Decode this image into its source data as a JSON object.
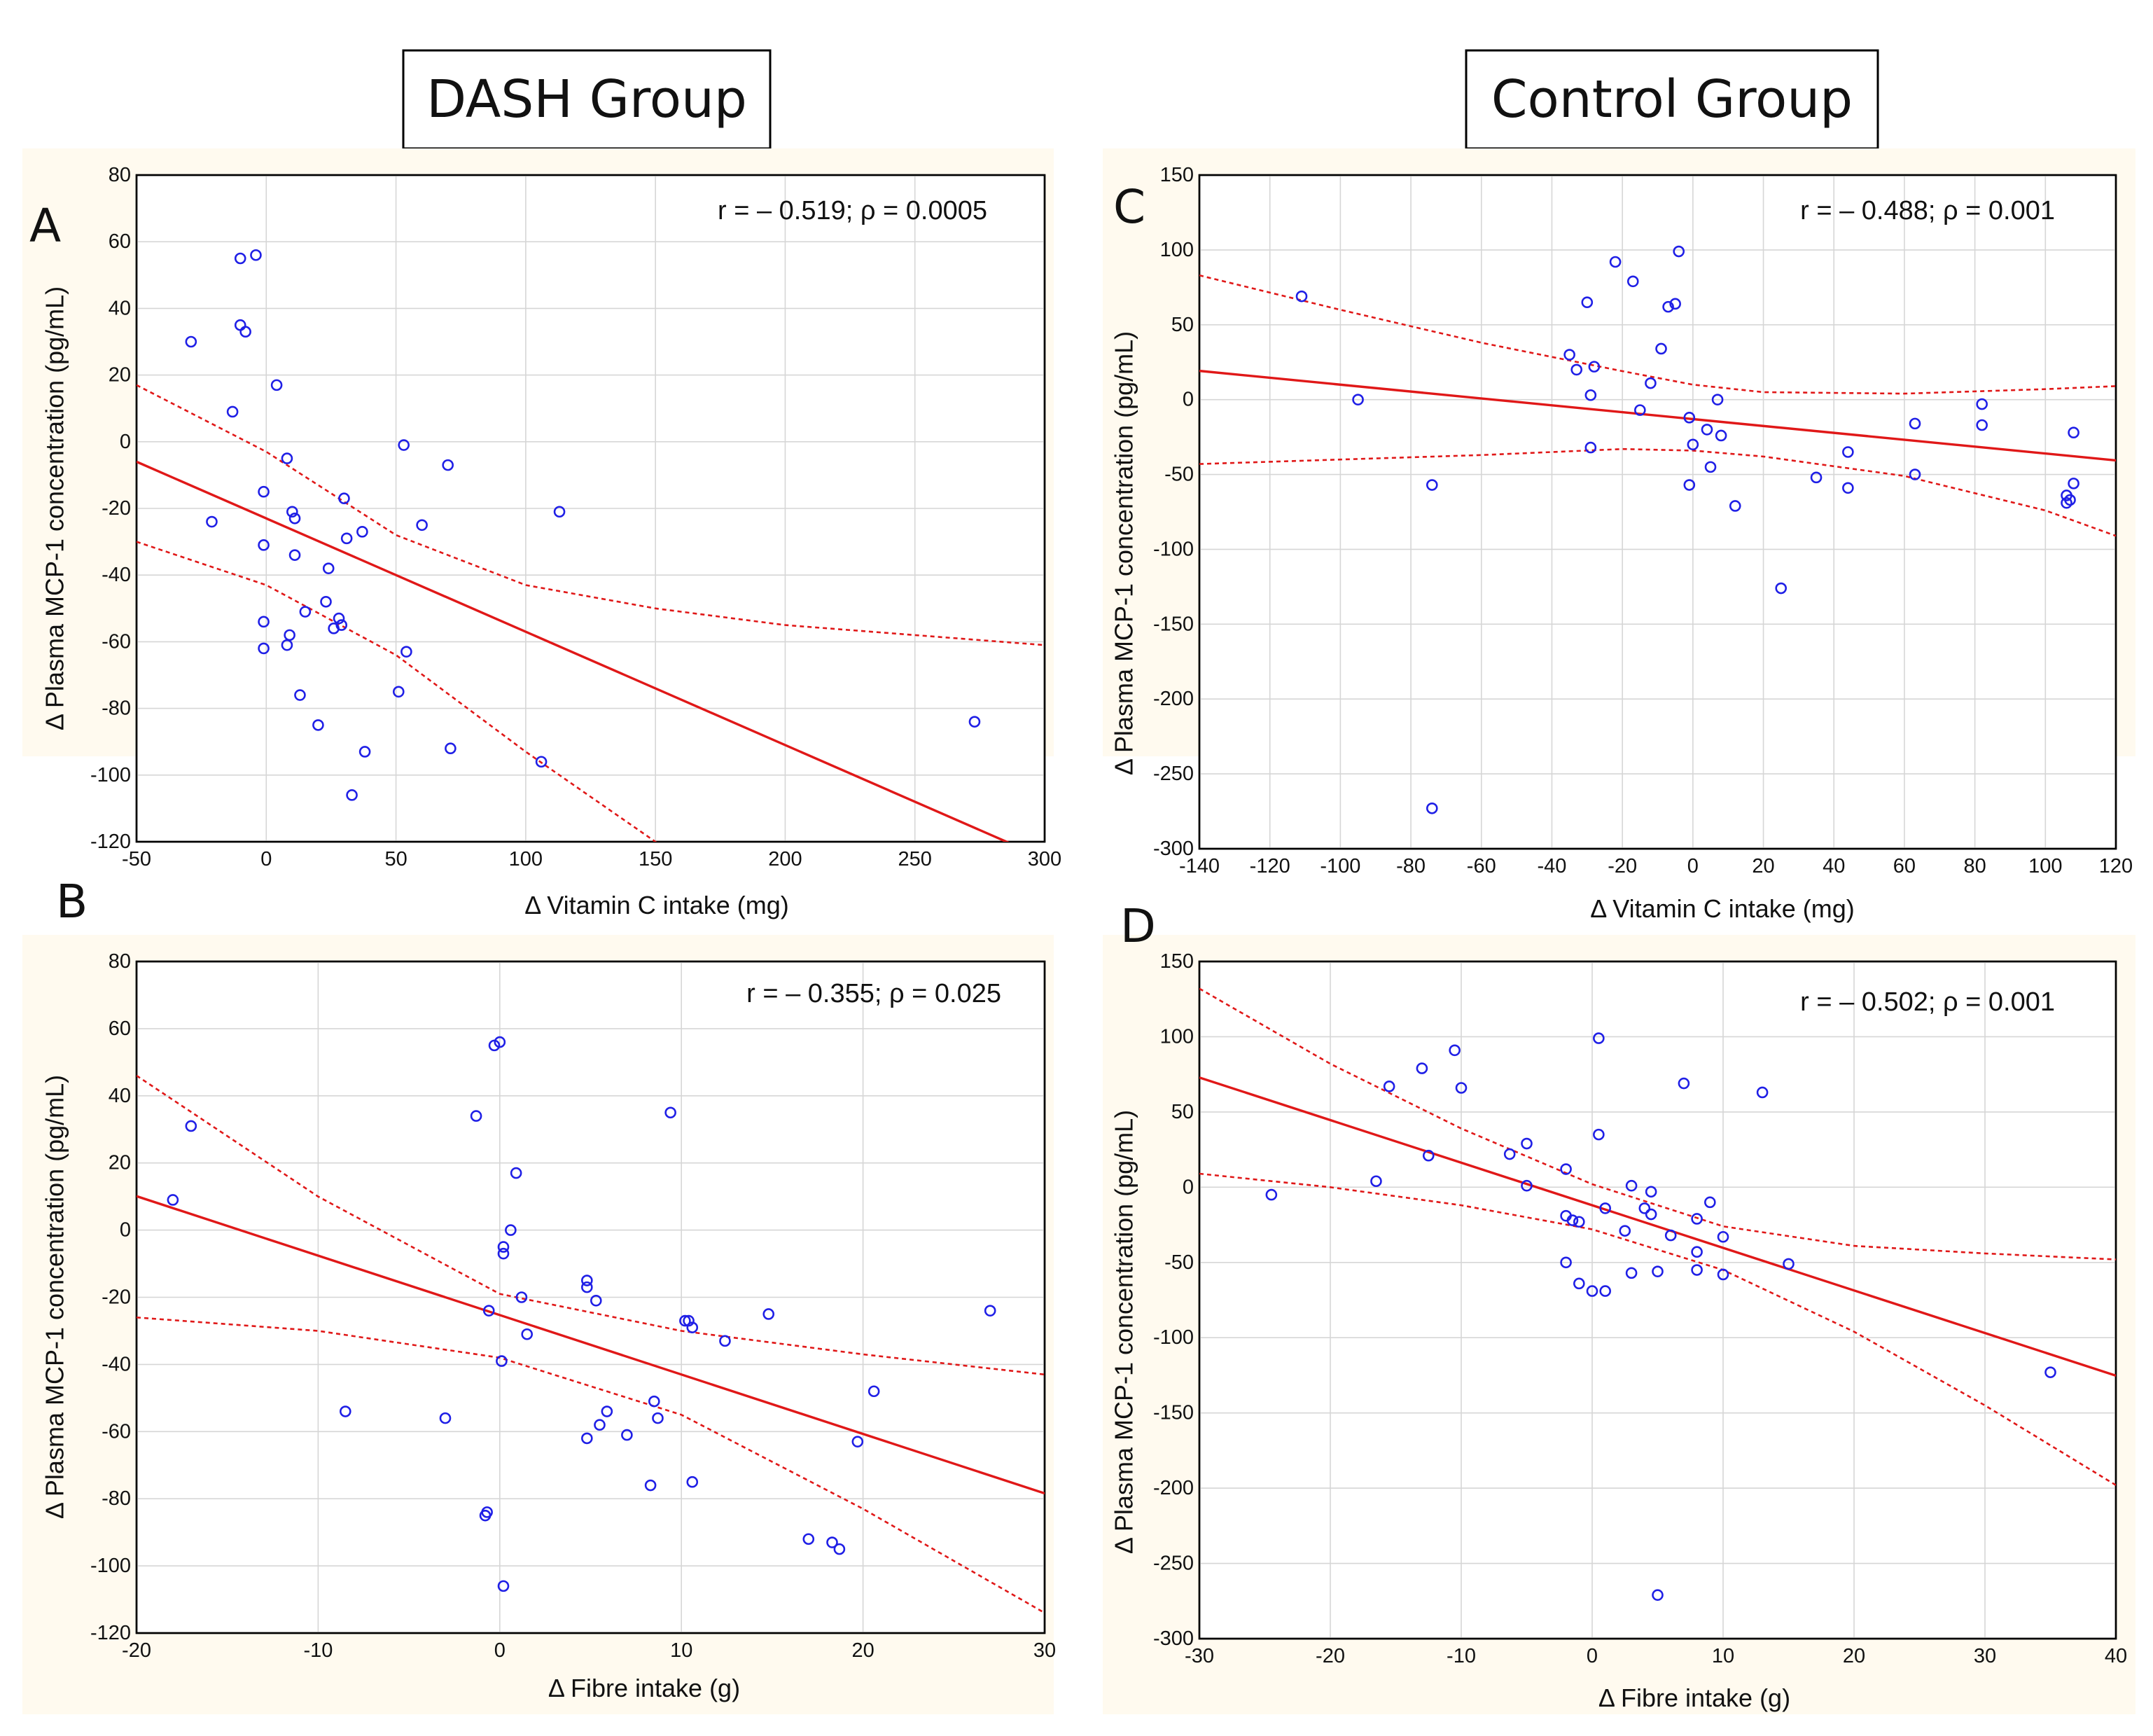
{
  "groups": {
    "dash_title": "DASH Group",
    "control_title": "Control Group"
  },
  "colors": {
    "points": "#1f1fe6",
    "fit": "#e01818",
    "panel_bg": "#fffaef"
  },
  "chart_data": [
    {
      "id": "A",
      "type": "scatter",
      "letter": "A",
      "group": "DASH Group",
      "stat_text": "r = – 0.519; ρ = 0.0005",
      "xlabel": "Δ Vitamin C intake (mg)",
      "ylabel": "Δ Plasma MCP-1 concentration (pg/mL)",
      "xlim": [
        -50,
        300
      ],
      "ylim": [
        -120,
        80
      ],
      "xticks": [
        -50,
        0,
        50,
        100,
        150,
        200,
        250,
        300
      ],
      "yticks": [
        -120,
        -100,
        -80,
        -60,
        -40,
        -20,
        0,
        20,
        40,
        60,
        80
      ],
      "fit_line": {
        "slope": -0.34,
        "intercept": -23
      },
      "ci_upper": [
        [
          -50,
          17
        ],
        [
          0,
          -3
        ],
        [
          50,
          -28
        ],
        [
          100,
          -43
        ],
        [
          150,
          -50
        ],
        [
          200,
          -55
        ],
        [
          250,
          -58
        ],
        [
          300,
          -61
        ]
      ],
      "ci_lower": [
        [
          -50,
          -30
        ],
        [
          0,
          -43
        ],
        [
          50,
          -64
        ],
        [
          100,
          -93
        ],
        [
          150,
          -120
        ],
        [
          157,
          -124
        ]
      ],
      "points": [
        [
          -29,
          30
        ],
        [
          -10,
          55
        ],
        [
          -4,
          56
        ],
        [
          -10,
          35
        ],
        [
          -8,
          33
        ],
        [
          -13,
          9
        ],
        [
          4,
          17
        ],
        [
          -21,
          -24
        ],
        [
          8,
          -5
        ],
        [
          -1,
          -15
        ],
        [
          -1,
          -31
        ],
        [
          -1,
          -54
        ],
        [
          -1,
          -62
        ],
        [
          10,
          -21
        ],
        [
          11,
          -23
        ],
        [
          11,
          -34
        ],
        [
          9,
          -58
        ],
        [
          8,
          -61
        ],
        [
          15,
          -51
        ],
        [
          13,
          -76
        ],
        [
          20,
          -85
        ],
        [
          24,
          -38
        ],
        [
          23,
          -48
        ],
        [
          26,
          -56
        ],
        [
          28,
          -53
        ],
        [
          29,
          -55
        ],
        [
          30,
          -17
        ],
        [
          31,
          -29
        ],
        [
          37,
          -27
        ],
        [
          33,
          -106
        ],
        [
          38,
          -93
        ],
        [
          51,
          -75
        ],
        [
          53,
          -1
        ],
        [
          54,
          -63
        ],
        [
          60,
          -25
        ],
        [
          70,
          -7
        ],
        [
          71,
          -92
        ],
        [
          106,
          -96
        ],
        [
          113,
          -21
        ],
        [
          273,
          -84
        ]
      ]
    },
    {
      "id": "B",
      "type": "scatter",
      "letter": "B",
      "group": "DASH Group",
      "stat_text": "r = – 0.355; ρ = 0.025",
      "xlabel": "Δ Fibre intake (g)",
      "ylabel": "Δ Plasma MCP-1 concentration (pg/mL)",
      "xlim": [
        -20,
        30
      ],
      "ylim": [
        -120,
        80
      ],
      "xticks": [
        -20,
        -10,
        0,
        10,
        20,
        30
      ],
      "yticks": [
        -120,
        -100,
        -80,
        -60,
        -40,
        -20,
        0,
        20,
        40,
        60,
        80
      ],
      "fit_line": {
        "slope": -1.77,
        "intercept": -25.3
      },
      "ci_upper": [
        [
          -20,
          46
        ],
        [
          -10,
          10
        ],
        [
          0,
          -19
        ],
        [
          10,
          -30
        ],
        [
          20,
          -37
        ],
        [
          30,
          -43
        ]
      ],
      "ci_lower": [
        [
          -20,
          -26
        ],
        [
          -10,
          -30
        ],
        [
          0,
          -38
        ],
        [
          10,
          -55
        ],
        [
          20,
          -83
        ],
        [
          30,
          -114
        ]
      ],
      "points": [
        [
          -18,
          9
        ],
        [
          -17,
          31
        ],
        [
          -8.5,
          -54
        ],
        [
          -3,
          -56
        ],
        [
          -1.3,
          34
        ],
        [
          -0.7,
          -84
        ],
        [
          -0.8,
          -85
        ],
        [
          -0.6,
          -24
        ],
        [
          -0.3,
          55
        ],
        [
          0,
          56
        ],
        [
          0.2,
          -5
        ],
        [
          0.2,
          -7
        ],
        [
          0.1,
          -39
        ],
        [
          0.6,
          0
        ],
        [
          0.2,
          -106
        ],
        [
          0.9,
          17
        ],
        [
          1.2,
          -20
        ],
        [
          1.5,
          -31
        ],
        [
          4.8,
          -15
        ],
        [
          4.8,
          -17
        ],
        [
          5.3,
          -21
        ],
        [
          5.5,
          -58
        ],
        [
          5.9,
          -54
        ],
        [
          4.8,
          -62
        ],
        [
          7,
          -61
        ],
        [
          8.3,
          -76
        ],
        [
          8.5,
          -51
        ],
        [
          8.7,
          -56
        ],
        [
          9.4,
          35
        ],
        [
          10.2,
          -27
        ],
        [
          10.4,
          -27
        ],
        [
          10.6,
          -29
        ],
        [
          10.6,
          -75
        ],
        [
          12.4,
          -33
        ],
        [
          14.8,
          -25
        ],
        [
          17,
          -92
        ],
        [
          18.3,
          -93
        ],
        [
          18.7,
          -95
        ],
        [
          19.7,
          -63
        ],
        [
          20.6,
          -48
        ],
        [
          27,
          -24
        ]
      ]
    },
    {
      "id": "C",
      "type": "scatter",
      "letter": "C",
      "group": "Control Group",
      "stat_text": "r = – 0.488; ρ = 0.001",
      "xlabel": "Δ Vitamin C intake (mg)",
      "ylabel": "Δ Plasma MCP-1 concentration (pg/mL)",
      "xlim": [
        -140,
        120
      ],
      "ylim": [
        -300,
        150
      ],
      "xticks": [
        -140,
        -120,
        -100,
        -80,
        -60,
        -40,
        -20,
        0,
        20,
        40,
        60,
        80,
        100,
        120
      ],
      "yticks": [
        -300,
        -250,
        -200,
        -150,
        -100,
        -50,
        0,
        50,
        100,
        150
      ],
      "fit_line": {
        "slope": -0.23,
        "intercept": -13
      },
      "ci_upper": [
        [
          -140,
          83
        ],
        [
          -100,
          60
        ],
        [
          -60,
          38
        ],
        [
          -20,
          19
        ],
        [
          0,
          10
        ],
        [
          20,
          5
        ],
        [
          60,
          4
        ],
        [
          100,
          7
        ],
        [
          120,
          9
        ]
      ],
      "ci_lower": [
        [
          -140,
          -43
        ],
        [
          -100,
          -40
        ],
        [
          -60,
          -37
        ],
        [
          -20,
          -33
        ],
        [
          0,
          -34
        ],
        [
          20,
          -38
        ],
        [
          60,
          -51
        ],
        [
          100,
          -74
        ],
        [
          120,
          -91
        ]
      ],
      "points": [
        [
          -111,
          69
        ],
        [
          -95,
          0
        ],
        [
          -74,
          -57
        ],
        [
          -74,
          -273
        ],
        [
          -35,
          30
        ],
        [
          -33,
          20
        ],
        [
          -30,
          65
        ],
        [
          -28,
          22
        ],
        [
          -22,
          92
        ],
        [
          -17,
          79
        ],
        [
          -15,
          -7
        ],
        [
          -12,
          11
        ],
        [
          -9,
          34
        ],
        [
          -7,
          62
        ],
        [
          -5,
          64
        ],
        [
          -4,
          99
        ],
        [
          -29,
          3
        ],
        [
          -29,
          -32
        ],
        [
          -1,
          -12
        ],
        [
          0,
          -30
        ],
        [
          -1,
          -57
        ],
        [
          4,
          -20
        ],
        [
          5,
          -45
        ],
        [
          7,
          0
        ],
        [
          8,
          -24
        ],
        [
          12,
          -71
        ],
        [
          25,
          -126
        ],
        [
          35,
          -52
        ],
        [
          44,
          -35
        ],
        [
          44,
          -59
        ],
        [
          63,
          -16
        ],
        [
          63,
          -50
        ],
        [
          82,
          -3
        ],
        [
          82,
          -17
        ],
        [
          106,
          -64
        ],
        [
          106,
          -69
        ],
        [
          107,
          -67
        ],
        [
          108,
          -56
        ],
        [
          108,
          -22
        ]
      ]
    },
    {
      "id": "D",
      "type": "scatter",
      "letter": "D",
      "group": "Control Group",
      "stat_text": "r = – 0.502; ρ = 0.001",
      "xlabel": "Δ Fibre intake (g)",
      "ylabel": "Δ Plasma MCP-1 concentration (pg/mL)",
      "xlim": [
        -30,
        40
      ],
      "ylim": [
        -300,
        150
      ],
      "xticks": [
        -30,
        -20,
        -10,
        0,
        10,
        20,
        30,
        40
      ],
      "yticks": [
        -300,
        -250,
        -200,
        -150,
        -100,
        -50,
        0,
        50,
        100,
        150
      ],
      "fit_line": {
        "slope": -2.83,
        "intercept": -12
      },
      "ci_upper": [
        [
          -30,
          132
        ],
        [
          -20,
          82
        ],
        [
          -10,
          39
        ],
        [
          0,
          2
        ],
        [
          10,
          -26
        ],
        [
          20,
          -39
        ],
        [
          30,
          -44
        ],
        [
          40,
          -48
        ]
      ],
      "ci_lower": [
        [
          -30,
          9
        ],
        [
          -20,
          0
        ],
        [
          -10,
          -12
        ],
        [
          0,
          -28
        ],
        [
          10,
          -55
        ],
        [
          20,
          -96
        ],
        [
          30,
          -145
        ],
        [
          40,
          -198
        ]
      ],
      "points": [
        [
          -24.5,
          -5
        ],
        [
          -16.5,
          4
        ],
        [
          -15.5,
          67
        ],
        [
          -13,
          79
        ],
        [
          -12.5,
          21
        ],
        [
          -10.5,
          91
        ],
        [
          -10,
          66
        ],
        [
          -6.3,
          22
        ],
        [
          -5,
          29
        ],
        [
          -5,
          1
        ],
        [
          -2,
          12
        ],
        [
          -2,
          -19
        ],
        [
          -2,
          -50
        ],
        [
          -1.5,
          -22
        ],
        [
          -1,
          -23
        ],
        [
          -1,
          -64
        ],
        [
          0,
          -69
        ],
        [
          0.5,
          35
        ],
        [
          0.5,
          99
        ],
        [
          1,
          -14
        ],
        [
          1,
          -69
        ],
        [
          2.5,
          -29
        ],
        [
          3,
          1
        ],
        [
          3,
          -57
        ],
        [
          4,
          -14
        ],
        [
          4.5,
          -3
        ],
        [
          4.5,
          -18
        ],
        [
          5,
          -56
        ],
        [
          5,
          -271
        ],
        [
          6,
          -32
        ],
        [
          7,
          69
        ],
        [
          8,
          -21
        ],
        [
          8,
          -43
        ],
        [
          8,
          -55
        ],
        [
          9,
          -10
        ],
        [
          10,
          -33
        ],
        [
          10,
          -58
        ],
        [
          13,
          63
        ],
        [
          15,
          -51
        ],
        [
          35,
          -123
        ]
      ]
    }
  ]
}
